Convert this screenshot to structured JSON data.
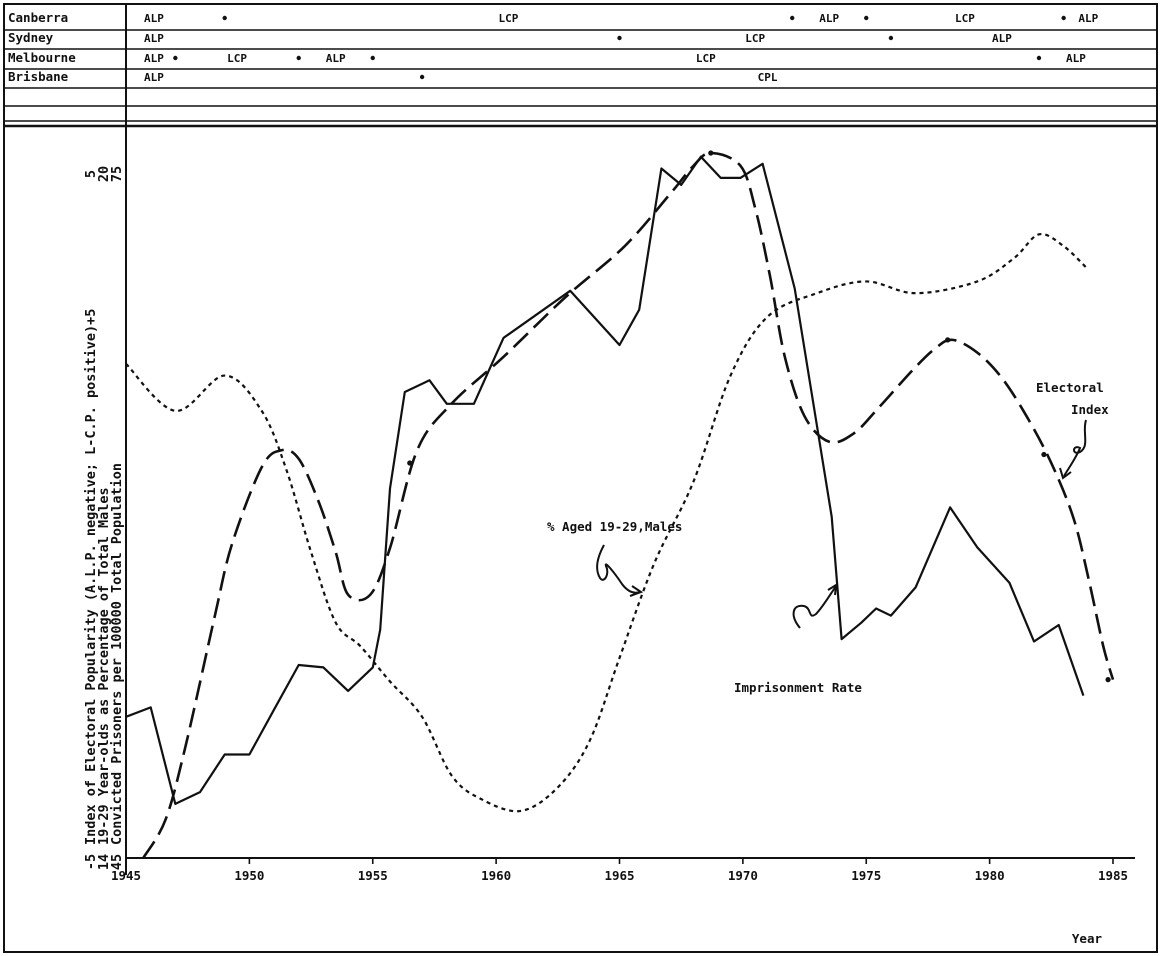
{
  "chart_data": {
    "type": "line",
    "xlabel": "Year",
    "xlim": [
      1945,
      1985
    ],
    "xticks": [
      "1945",
      "1950",
      "1955",
      "1960",
      "1965",
      "1970",
      "1975",
      "1980",
      "1985"
    ],
    "ylabels": [
      "Index of Electoral Popularity (A.L.P. negative; L-C.P. positive)+5",
      "19-29 Year-olds as Percentage of Total Males",
      "Convicted Prisoners per 100000 Total Population"
    ],
    "yaxis_ticks": {
      "electoral_index": [
        "-5",
        "5"
      ],
      "percentage_males": [
        "14",
        "20"
      ],
      "prisoners": [
        "45",
        "75"
      ]
    },
    "government_table": [
      {
        "city": "Canberra",
        "periods": [
          {
            "party": "ALP",
            "start": 1945,
            "end": 1949
          },
          {
            "party": "LCP",
            "start": 1949,
            "end": 1972
          },
          {
            "party": "ALP",
            "start": 1972,
            "end": 1975
          },
          {
            "party": "LCP",
            "start": 1975,
            "end": 1983
          },
          {
            "party": "ALP",
            "start": 1983,
            "end": 1985
          }
        ]
      },
      {
        "city": "Sydney",
        "periods": [
          {
            "party": "ALP",
            "start": 1945,
            "end": 1965
          },
          {
            "party": "LCP",
            "start": 1965,
            "end": 1976
          },
          {
            "party": "ALP",
            "start": 1976,
            "end": 1985
          }
        ]
      },
      {
        "city": "Melbourne",
        "periods": [
          {
            "party": "ALP",
            "start": 1945,
            "end": 1947
          },
          {
            "party": "LCP",
            "start": 1947,
            "end": 1952
          },
          {
            "party": "ALP",
            "start": 1952,
            "end": 1955
          },
          {
            "party": "LCP",
            "start": 1955,
            "end": 1982
          },
          {
            "party": "ALP",
            "start": 1982,
            "end": 1985
          }
        ]
      },
      {
        "city": "Brisbane",
        "periods": [
          {
            "party": "ALP",
            "start": 1945,
            "end": 1957
          },
          {
            "party": "CPL",
            "start": 1957,
            "end": 1985
          }
        ]
      }
    ],
    "series": [
      {
        "name": "Imprisonment Rate",
        "style": "solid",
        "points": [
          [
            1945,
            51
          ],
          [
            1946,
            51.4
          ],
          [
            1947,
            47.3
          ],
          [
            1948,
            47.8
          ],
          [
            1949,
            49.4
          ],
          [
            1950,
            49.4
          ],
          [
            1951,
            51.3
          ],
          [
            1952,
            53.2
          ],
          [
            1953,
            53.1
          ],
          [
            1954,
            52.1
          ],
          [
            1955,
            53.1
          ],
          [
            1955.3,
            54.7
          ],
          [
            1955.7,
            60.7
          ],
          [
            1956.3,
            64.8
          ],
          [
            1957.3,
            65.3
          ],
          [
            1958,
            64.3
          ],
          [
            1959.1,
            64.3
          ],
          [
            1960.3,
            67.1
          ],
          [
            1963,
            69.1
          ],
          [
            1965,
            66.8
          ],
          [
            1965.8,
            68.3
          ],
          [
            1966.7,
            74.3
          ],
          [
            1967.5,
            73.6
          ],
          [
            1968.3,
            74.8
          ],
          [
            1969.1,
            73.9
          ],
          [
            1969.9,
            73.9
          ],
          [
            1970.8,
            74.5
          ],
          [
            1972.1,
            69.2
          ],
          [
            1973.6,
            59.5
          ],
          [
            1974,
            54.3
          ],
          [
            1974.8,
            55
          ],
          [
            1975.4,
            55.6
          ],
          [
            1976,
            55.3
          ],
          [
            1977,
            56.5
          ],
          [
            1978.4,
            59.9
          ],
          [
            1979.5,
            58.2
          ],
          [
            1980.8,
            56.7
          ],
          [
            1981.8,
            54.2
          ],
          [
            1982.8,
            54.9
          ],
          [
            1983.8,
            51.9
          ]
        ]
      },
      {
        "name": "Electoral Index",
        "style": "long-dash",
        "points": [
          [
            1945.7,
            -5
          ],
          [
            1946.6,
            -4.1
          ],
          [
            1947.4,
            -2.4
          ],
          [
            1948.6,
            0.7
          ],
          [
            1949.3,
            2.4
          ],
          [
            1950.5,
            4.2
          ],
          [
            1951.3,
            4.6
          ],
          [
            1952,
            4.4
          ],
          [
            1952.8,
            3.4
          ],
          [
            1953.5,
            2.2
          ],
          [
            1954,
            1.2
          ],
          [
            1954.9,
            1.2
          ],
          [
            1955.7,
            2.3
          ],
          [
            1956.8,
            4.6
          ],
          [
            1958.2,
            5.7
          ],
          [
            1960.3,
            6.8
          ],
          [
            1962.8,
            8.2
          ],
          [
            1965.2,
            9.4
          ],
          [
            1967,
            10.6
          ],
          [
            1968,
            11.3
          ],
          [
            1968.7,
            11.6
          ],
          [
            1969.9,
            11.3
          ],
          [
            1970.5,
            10.3
          ],
          [
            1971.1,
            8.7
          ],
          [
            1971.7,
            6.8
          ],
          [
            1972.5,
            5.4
          ],
          [
            1973.5,
            4.8
          ],
          [
            1974.5,
            5.0
          ],
          [
            1975.5,
            5.6
          ],
          [
            1976.9,
            6.5
          ],
          [
            1977.8,
            7.0
          ],
          [
            1978.5,
            7.2
          ],
          [
            1979.5,
            6.9
          ],
          [
            1980.5,
            6.3
          ],
          [
            1981.5,
            5.4
          ],
          [
            1982.5,
            4.3
          ],
          [
            1983.4,
            3.0
          ],
          [
            1984,
            1.6
          ],
          [
            1984.6,
            0.0
          ],
          [
            1985,
            -0.8
          ]
        ]
      },
      {
        "name": "% Aged 19-29 Males",
        "style": "short-dash",
        "points": [
          [
            1945,
            18.2
          ],
          [
            1947,
            17.8
          ],
          [
            1949,
            18.1
          ],
          [
            1950.5,
            17.8
          ],
          [
            1951.5,
            17.3
          ],
          [
            1952.5,
            16.6
          ],
          [
            1953.5,
            16
          ],
          [
            1954.5,
            15.8
          ],
          [
            1955.7,
            15.5
          ],
          [
            1957,
            15.2
          ],
          [
            1958.2,
            14.7
          ],
          [
            1959.4,
            14.5
          ],
          [
            1961,
            14.4
          ],
          [
            1962.5,
            14.6
          ],
          [
            1963.8,
            15
          ],
          [
            1965,
            15.7
          ],
          [
            1966.4,
            16.5
          ],
          [
            1968,
            17.2
          ],
          [
            1969.5,
            18.1
          ],
          [
            1971,
            18.6
          ],
          [
            1973,
            18.8
          ],
          [
            1975,
            18.9
          ],
          [
            1977,
            18.8
          ],
          [
            1979.5,
            18.9
          ],
          [
            1981,
            19.1
          ],
          [
            1982,
            19.3
          ],
          [
            1983,
            19.2
          ],
          [
            1984,
            19.0
          ]
        ]
      }
    ],
    "annotations": [
      {
        "text": "% Aged 19-29,Males"
      },
      {
        "text": "Imprisonment Rate"
      },
      {
        "text": "Electoral"
      },
      {
        "text": "Index"
      }
    ]
  }
}
